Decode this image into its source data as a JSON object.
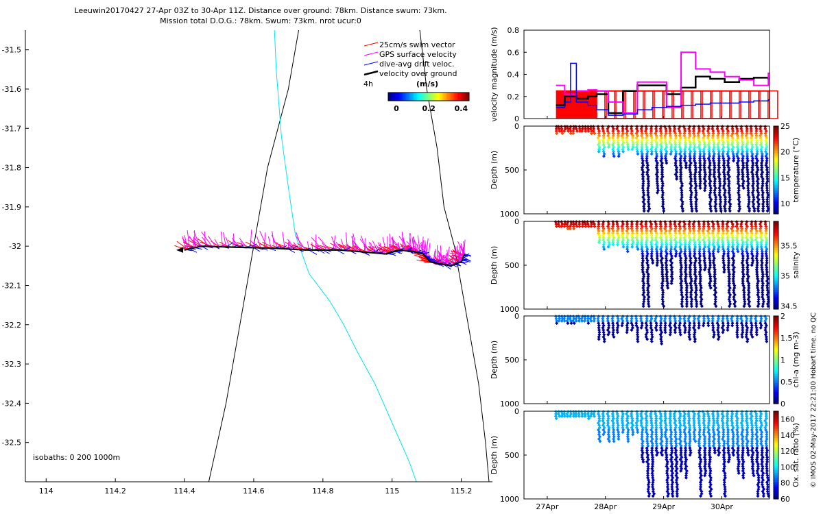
{
  "title": {
    "line1": "Leeuwin20170427 27-Apr 03Z to 30-Apr 11Z. Distance over ground: 78km. Distance swum: 73km.",
    "line2": "Mission total D.O.G.: 78km. Swum: 73km. nrot ucur:0"
  },
  "credit": "© IMOS 02-May-2017 22:21:00 Hobart time. no QC",
  "colors": {
    "swim": "#ff0000",
    "gps": "#ff00ff",
    "drift": "#0000ff",
    "ground": "#000000",
    "isobath200": "#00e5ee",
    "isobath1000": "#000000"
  },
  "chart_data": [
    {
      "type": "scatter",
      "name": "map",
      "xlim": [
        113.94,
        115.29
      ],
      "ylim": [
        -32.6,
        -31.45
      ],
      "xticks": [
        114,
        114.2,
        114.4,
        114.6,
        114.8,
        115,
        115.2
      ],
      "xticklabels": [
        "114",
        "114.2",
        "114.4",
        "114.6",
        "114.8",
        "115",
        "115.2"
      ],
      "yticks": [
        -31.5,
        -31.6,
        -31.7,
        -31.8,
        -31.9,
        -32,
        -32.1,
        -32.2,
        -32.3,
        -32.4,
        -32.5
      ],
      "yticklabels": [
        "-31.5",
        "-31.6",
        "-31.7",
        "-31.8",
        "-31.9",
        "-32",
        "-32.1",
        "-32.2",
        "-32.3",
        "-32.4",
        "-32.5"
      ],
      "legend": {
        "position": "top-right",
        "entries": [
          "25cm/s swim vector",
          "GPS surface velocity",
          "dive-avg drift veloc.",
          "velocity over ground"
        ],
        "time_label": "4h",
        "colorbar_label": "(m/s)",
        "colorbar_ticks": [
          0,
          0.2,
          0.4
        ],
        "colorbar_ticklabels": [
          "0",
          "0.2",
          "0.4"
        ],
        "colorbar_range": [
          0,
          0.5
        ]
      },
      "isobath_note": "isobaths: 0   200  1000m",
      "track": [
        [
          115.21,
          -32.02
        ],
        [
          115.2,
          -32.04
        ],
        [
          115.17,
          -32.05
        ],
        [
          115.14,
          -32.045
        ],
        [
          115.11,
          -32.04
        ],
        [
          115.09,
          -32.02
        ],
        [
          115.06,
          -32.013
        ],
        [
          115.02,
          -32.01
        ],
        [
          114.98,
          -32.02
        ],
        [
          114.92,
          -32.015
        ],
        [
          114.85,
          -32.01
        ],
        [
          114.75,
          -32.01
        ],
        [
          114.65,
          -32.005
        ],
        [
          114.55,
          -32.003
        ],
        [
          114.45,
          -32.0
        ],
        [
          114.4,
          -32.01
        ]
      ],
      "coast_isobath_1000": [
        [
          114.47,
          -32.6
        ],
        [
          114.52,
          -32.4
        ],
        [
          114.56,
          -32.2
        ],
        [
          114.6,
          -32.0
        ],
        [
          114.64,
          -31.8
        ],
        [
          114.7,
          -31.6
        ],
        [
          114.73,
          -31.45
        ]
      ],
      "isobath_200": [
        [
          114.66,
          -31.45
        ],
        [
          114.665,
          -31.55
        ],
        [
          114.68,
          -31.72
        ],
        [
          114.7,
          -31.85
        ],
        [
          114.72,
          -31.97
        ],
        [
          114.76,
          -32.07
        ],
        [
          114.82,
          -32.14
        ],
        [
          114.86,
          -32.2
        ],
        [
          114.9,
          -32.27
        ],
        [
          114.95,
          -32.35
        ],
        [
          115.0,
          -32.45
        ],
        [
          115.05,
          -32.55
        ],
        [
          115.07,
          -32.6
        ]
      ],
      "coast": [
        [
          115.08,
          -31.45
        ],
        [
          115.1,
          -31.6
        ],
        [
          115.13,
          -31.75
        ],
        [
          115.15,
          -31.9
        ],
        [
          115.18,
          -32.0
        ],
        [
          115.2,
          -32.1
        ],
        [
          115.22,
          -32.2
        ],
        [
          115.25,
          -32.35
        ],
        [
          115.27,
          -32.5
        ],
        [
          115.28,
          -32.6
        ]
      ]
    },
    {
      "type": "line",
      "name": "velocity",
      "ylabel": "velocity magnitude (m/s)",
      "ylim": [
        0,
        0.8
      ],
      "yticks": [
        0,
        0.2,
        0.4,
        0.6,
        0.8
      ],
      "yticklabels": [
        "0",
        "0.2",
        "0.4",
        "0.6",
        "0.8"
      ],
      "xlim": [
        26.6,
        30.82
      ],
      "xticks": [
        27,
        28,
        29,
        30
      ],
      "xticklabels": [
        "27Apr",
        "28Apr",
        "29Apr",
        "30Apr"
      ],
      "series": [
        {
          "key": "ground",
          "x": [
            27.15,
            27.3,
            27.5,
            27.7,
            27.85,
            28.05,
            28.3,
            28.55,
            28.8,
            29.05,
            29.3,
            29.55,
            29.8,
            30.05,
            30.3,
            30.55,
            30.8
          ],
          "y": [
            0.12,
            0.2,
            0.18,
            0.2,
            0.22,
            0.05,
            0.25,
            0.3,
            0.3,
            0.22,
            0.28,
            0.38,
            0.36,
            0.33,
            0.36,
            0.37,
            0.36
          ]
        },
        {
          "key": "gps",
          "x": [
            27.15,
            27.3,
            27.5,
            27.7,
            27.85,
            28.05,
            28.3,
            28.55,
            28.8,
            29.05,
            29.3,
            29.55,
            29.8,
            30.05,
            30.3,
            30.55,
            30.8
          ],
          "y": [
            0.3,
            0.22,
            0.25,
            0.26,
            0.25,
            0.15,
            0.05,
            0.33,
            0.33,
            0.1,
            0.6,
            0.45,
            0.42,
            0.38,
            0.35,
            0.3,
            0.41
          ]
        },
        {
          "key": "drift",
          "x": [
            27.15,
            27.3,
            27.4,
            27.5,
            27.7,
            27.85,
            28.05,
            28.3,
            28.55,
            28.8,
            29.05,
            29.3,
            29.55,
            29.8,
            30.05,
            30.3,
            30.55,
            30.8
          ],
          "y": [
            0.1,
            0.15,
            0.5,
            0.15,
            0.12,
            0.08,
            0.03,
            0.04,
            0.08,
            0.1,
            0.11,
            0.12,
            0.13,
            0.14,
            0.14,
            0.15,
            0.16,
            0.17
          ]
        },
        {
          "key": "swim",
          "x": [
            27.15,
            30.82
          ],
          "y": [
            0.25,
            0.25
          ]
        }
      ]
    },
    {
      "type": "scatter",
      "name": "temperature",
      "ylabel": "Depth (m)",
      "ylim": [
        1000,
        0
      ],
      "yticks": [
        0,
        500,
        1000
      ],
      "yticklabels": [
        "0",
        "500",
        "1000"
      ],
      "colorbar_label": "temperature (°C)",
      "colorbar_range": [
        8,
        25
      ],
      "colorbar_ticks": [
        10,
        15,
        20,
        25
      ],
      "colorbar_ticklabels": [
        "10",
        "15",
        "20",
        "25"
      ],
      "colormap": "jet"
    },
    {
      "type": "scatter",
      "name": "salinity",
      "ylabel": "Depth (m)",
      "ylim": [
        1000,
        0
      ],
      "yticks": [
        0,
        500,
        1000
      ],
      "yticklabels": [
        "0",
        "500",
        "1000"
      ],
      "colorbar_label": "salinity",
      "colorbar_range": [
        34.45,
        35.9
      ],
      "colorbar_ticks": [
        34.5,
        35,
        35.5
      ],
      "colorbar_ticklabels": [
        "34.5",
        "35",
        "35.5"
      ],
      "colormap": "jet"
    },
    {
      "type": "scatter",
      "name": "chla",
      "ylabel": "Depth (m)",
      "ylim": [
        1000,
        0
      ],
      "yticks": [
        0,
        500,
        1000
      ],
      "yticklabels": [
        "0",
        "500",
        "1000"
      ],
      "colorbar_label": "chl-a (mg m-3)",
      "colorbar_range": [
        0,
        2
      ],
      "colorbar_ticks": [
        0,
        0.5,
        1,
        1.5,
        2
      ],
      "colorbar_ticklabels": [
        "0",
        "0.5",
        "1",
        "1.5",
        "2"
      ],
      "colormap": "jet"
    },
    {
      "type": "scatter",
      "name": "oxygen",
      "ylabel": "Depth (m)",
      "ylim": [
        1000,
        0
      ],
      "yticks": [
        0,
        500,
        1000
      ],
      "yticklabels": [
        "0",
        "500",
        "1000"
      ],
      "colorbar_label": "Ox. sat. ratio (%)",
      "colorbar_range": [
        60,
        170
      ],
      "colorbar_ticks": [
        60,
        80,
        100,
        120,
        140,
        160
      ],
      "colorbar_ticklabels": [
        "60",
        "80",
        "100",
        "120",
        "140",
        "160"
      ],
      "colormap": "jet"
    }
  ]
}
